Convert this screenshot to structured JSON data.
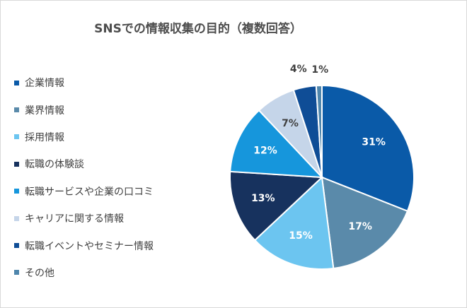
{
  "title": "SNSでの情報収集の目的（複数回答）",
  "chart_data": {
    "type": "pie",
    "title": "SNSでの情報収集の目的（複数回答）",
    "legend_position": "left",
    "start_angle": "12 o'clock, clockwise",
    "slices": [
      {
        "label": "企業情報",
        "value": 31,
        "display": "31%",
        "color": "#0a5aa8",
        "label_color": "#ffffff"
      },
      {
        "label": "業界情報",
        "value": 17,
        "display": "17%",
        "color": "#5a8aaa",
        "label_color": "#ffffff"
      },
      {
        "label": "採用情報",
        "value": 15,
        "display": "15%",
        "color": "#6cc5f0",
        "label_color": "#ffffff"
      },
      {
        "label": "転職の体験談",
        "value": 13,
        "display": "13%",
        "color": "#17325e",
        "label_color": "#ffffff"
      },
      {
        "label": "転職サービスや企業の口コミ",
        "value": 12,
        "display": "12%",
        "color": "#1696dc",
        "label_color": "#ffffff"
      },
      {
        "label": "キャリアに関する情報",
        "value": 7,
        "display": "7%",
        "color": "#c5d5e9",
        "label_color": "#404040"
      },
      {
        "label": "転職イベントやセミナー情報",
        "value": 4,
        "display": "4%",
        "color": "#0f4d96",
        "label_color": "#404040"
      },
      {
        "label": "その他",
        "value": 1,
        "display": "1%",
        "color": "#4f86ac",
        "label_color": "#404040"
      }
    ]
  }
}
